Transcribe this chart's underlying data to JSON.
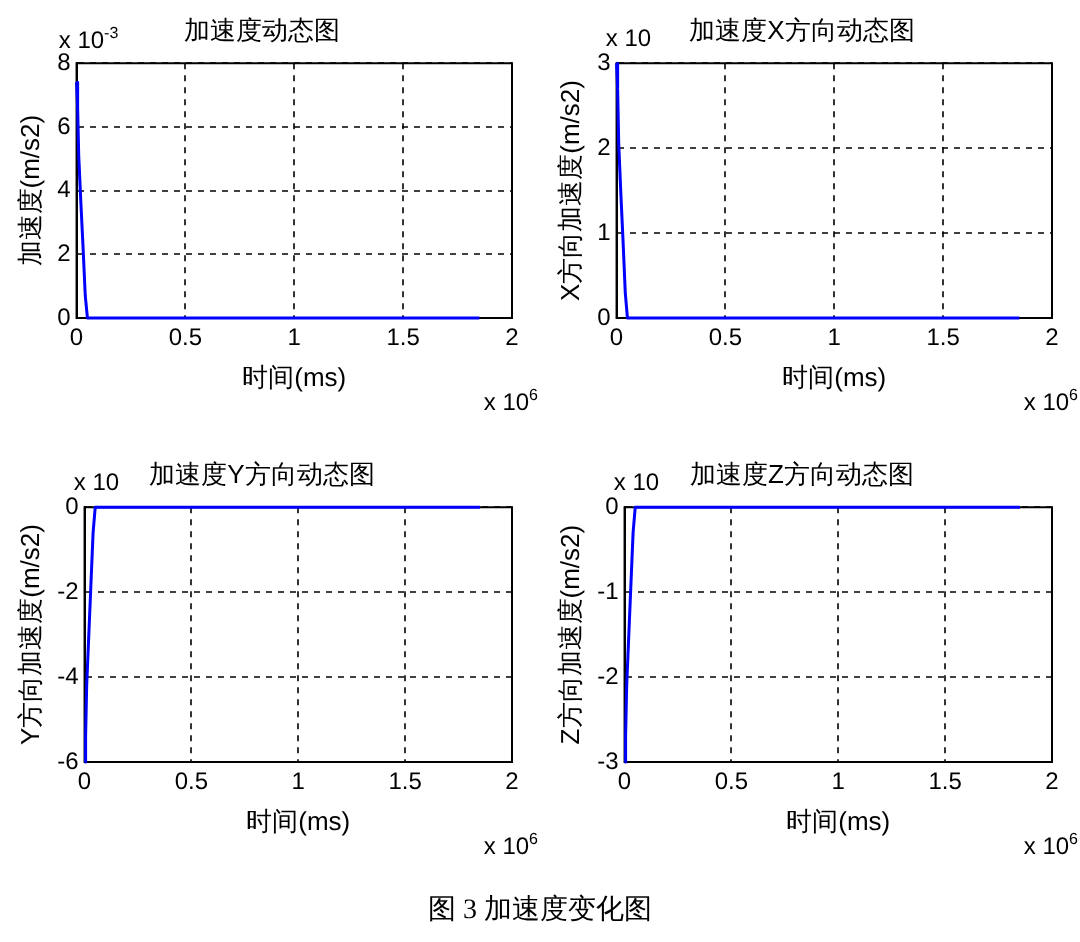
{
  "chart_data": [
    {
      "type": "line",
      "title": "加速度动态图",
      "xlabel": "时间(ms)",
      "ylabel": "加速度(m/s2)",
      "x": [
        0,
        0.005,
        0.01,
        0.02,
        0.03,
        0.04,
        0.05,
        1.85
      ],
      "series": [
        {
          "color": "#0000ff",
          "values": [
            7.4,
            6.6,
            5.1,
            3.6,
            2.2,
            0.7,
            0,
            0
          ]
        }
      ],
      "xlim": [
        0,
        2
      ],
      "xticks": [
        0,
        0.5,
        1,
        1.5,
        2
      ],
      "ylim": [
        0,
        8
      ],
      "yticks": [
        0,
        2,
        4,
        6,
        8
      ],
      "grid": true,
      "marker": "none",
      "line_style": "solid",
      "annotations": [
        "x 10$^{-3}$",
        "x 10$^{6}$"
      ]
    },
    {
      "type": "line",
      "title": "加速度X方向动态图",
      "xlabel": "时间(ms)",
      "ylabel": "X方向加速度(m/s2)",
      "x": [
        0,
        0.005,
        0.01,
        0.02,
        0.03,
        0.04,
        0.05,
        1.85
      ],
      "series": [
        {
          "color": "#0000ff",
          "values": [
            3,
            2.7,
            2.05,
            1.45,
            0.9,
            0.3,
            0,
            0
          ]
        }
      ],
      "xlim": [
        0,
        2
      ],
      "xticks": [
        0,
        0.5,
        1,
        1.5,
        2
      ],
      "ylim": [
        0,
        3
      ],
      "yticks": [
        0,
        1,
        2,
        3
      ],
      "grid": true,
      "marker": "none",
      "line_style": "solid",
      "annotations": [
        "x 10",
        "x 10$^{6}$"
      ]
    },
    {
      "type": "line",
      "title": "加速度Y方向动态图",
      "xlabel": "时间(ms)",
      "ylabel": "Y方向加速度(m/s2)",
      "x": [
        0,
        0.005,
        0.01,
        0.02,
        0.03,
        0.04,
        0.05,
        1.85
      ],
      "series": [
        {
          "color": "#0000ff",
          "values": [
            -6,
            -5.4,
            -4.2,
            -3,
            -1.8,
            -0.6,
            0,
            0
          ]
        }
      ],
      "xlim": [
        0,
        2
      ],
      "xticks": [
        0,
        0.5,
        1,
        1.5,
        2
      ],
      "ylim": [
        -6,
        0
      ],
      "yticks": [
        -6,
        -4,
        -2,
        0
      ],
      "grid": true,
      "marker": "none",
      "line_style": "solid",
      "annotations": [
        "x 10",
        "x 10$^{6}$"
      ]
    },
    {
      "type": "line",
      "title": "加速度Z方向动态图",
      "xlabel": "时间(ms)",
      "ylabel": "Z方向加速度(m/s2)",
      "x": [
        0,
        0.005,
        0.01,
        0.02,
        0.03,
        0.04,
        0.05,
        1.85
      ],
      "series": [
        {
          "color": "#0000ff",
          "values": [
            -3,
            -2.7,
            -2.1,
            -1.5,
            -0.9,
            -0.3,
            0,
            0
          ]
        }
      ],
      "xlim": [
        0,
        2
      ],
      "xticks": [
        0,
        0.5,
        1,
        1.5,
        2
      ],
      "ylim": [
        -3,
        0
      ],
      "yticks": [
        -3,
        -2,
        -1,
        0
      ],
      "grid": true,
      "marker": "none",
      "line_style": "solid",
      "annotations": [
        "x 10",
        "x 10$^{6}$",
        "图 3  加速度变化图"
      ]
    }
  ]
}
